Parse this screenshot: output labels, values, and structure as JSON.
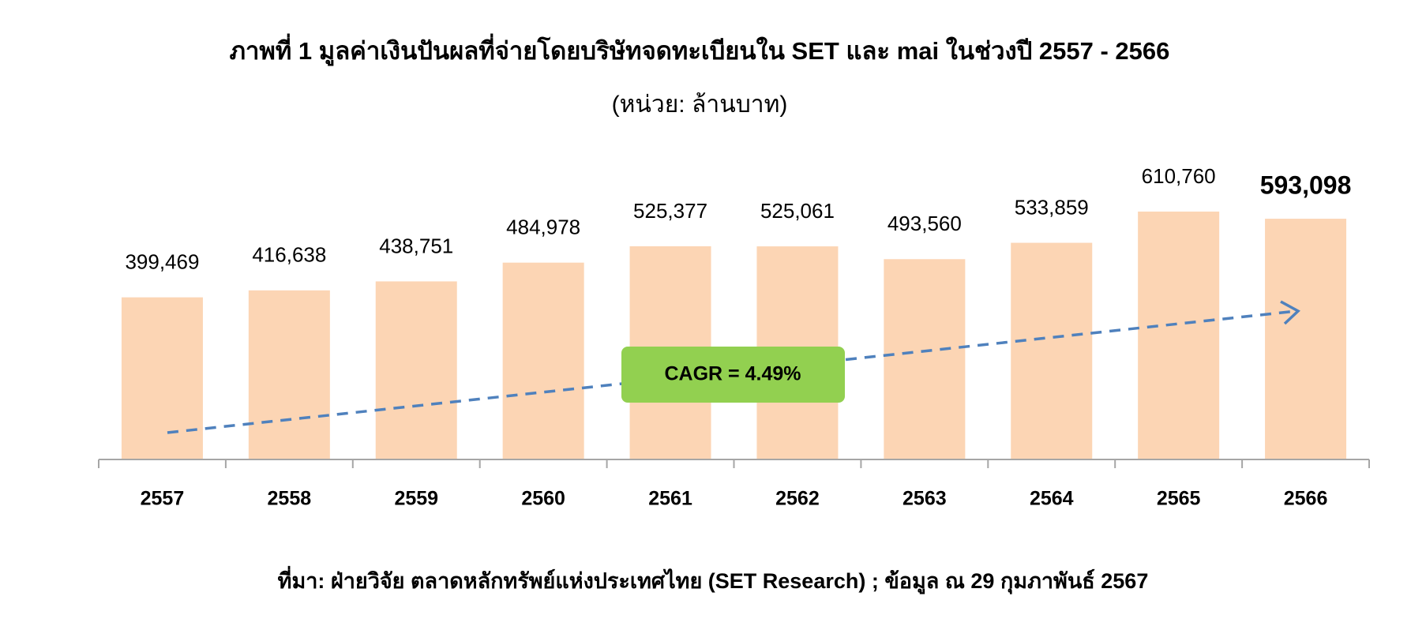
{
  "chart_data": {
    "type": "bar",
    "title": "ภาพที่ 1 มูลค่าเงินปันผลที่จ่ายโดยบริษัทจดทะเบียนใน SET และ mai ในช่วงปี 2557 - 2566",
    "subtitle": "(หน่วย:  ล้านบาท)",
    "categories": [
      "2557",
      "2558",
      "2559",
      "2560",
      "2561",
      "2562",
      "2563",
      "2564",
      "2565",
      "2566"
    ],
    "values": [
      399469,
      416638,
      438751,
      484978,
      525377,
      525061,
      493560,
      533859,
      610760,
      593098
    ],
    "value_labels": [
      "399,469",
      "416,638",
      "438,751",
      "484,978",
      "525,377",
      "525,061",
      "493,560",
      "533,859",
      "610,760",
      "593,098"
    ],
    "color": "#fcd5b4",
    "annotation": "CAGR = 4.49%",
    "source": "ที่มา: ฝ่ายวิจัย ตลาดหลักทรัพย์แห่งประเทศไทย (SET Research) ; ข้อมูล ณ 29 กุมภาพันธ์ 2567"
  }
}
